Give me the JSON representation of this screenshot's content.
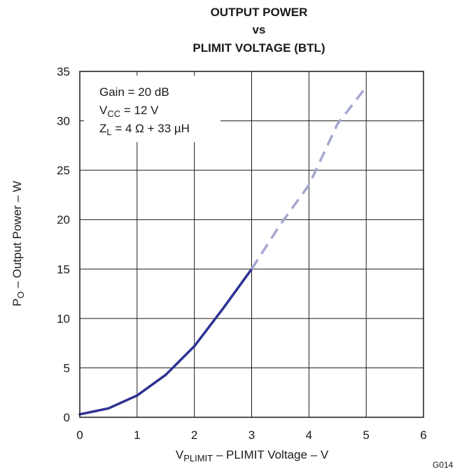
{
  "chart_data": {
    "type": "line",
    "title_lines": [
      "OUTPUT POWER",
      "vs",
      "PLIMIT VOLTAGE (BTL)"
    ],
    "xlabel": {
      "main": "V",
      "sub": "PLIMIT",
      "rest": " – PLIMIT Voltage – V"
    },
    "ylabel": {
      "main": "P",
      "sub": "O",
      "rest": " – Output Power – W"
    },
    "xlim": [
      0,
      6
    ],
    "ylim": [
      0,
      35
    ],
    "xticks": [
      "0",
      "1",
      "2",
      "3",
      "4",
      "5",
      "6"
    ],
    "yticks": [
      "0",
      "5",
      "10",
      "15",
      "20",
      "25",
      "30",
      "35"
    ],
    "grid": true,
    "annotations": [
      {
        "main": "Gain = 20 dB",
        "sub": "",
        "rest": ""
      },
      {
        "main": "V",
        "sub": "CC",
        "rest": " = 12 V"
      },
      {
        "main": "Z",
        "sub": "L",
        "rest": " = 4 Ω + 33 µH"
      }
    ],
    "series": [
      {
        "style": "solid",
        "color": "#2e3192",
        "x": [
          0,
          0.5,
          1.0,
          1.5,
          2.0,
          2.5,
          3.0
        ],
        "y": [
          0.3,
          0.9,
          2.2,
          4.3,
          7.2,
          11.0,
          15.0
        ]
      },
      {
        "style": "dashed",
        "color": "#a6a6d2",
        "x": [
          3.0,
          3.5,
          4.0,
          4.5,
          4.97
        ],
        "y": [
          15.0,
          19.5,
          23.5,
          29.7,
          33.2
        ]
      }
    ],
    "figure_id": "G014"
  }
}
